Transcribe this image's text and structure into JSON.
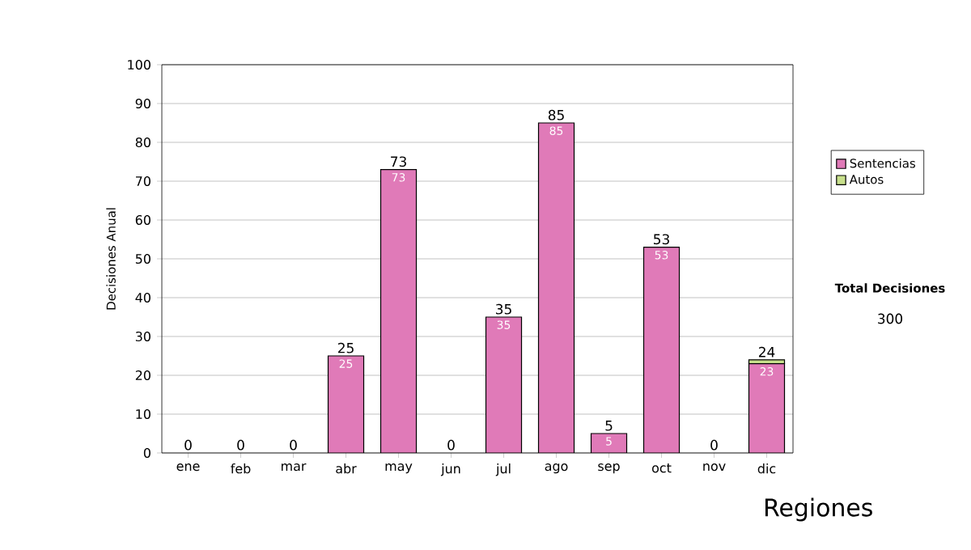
{
  "chart_data": {
    "type": "bar",
    "stacked": true,
    "ylabel": "Decisiones Anual",
    "categories": [
      "ene",
      "feb",
      "mar",
      "abr",
      "may",
      "jun",
      "jul",
      "ago",
      "sep",
      "oct",
      "nov",
      "dic"
    ],
    "series": [
      {
        "name": "Sentencias",
        "color": "#e07ab8",
        "values": [
          0,
          0,
          0,
          25,
          73,
          0,
          35,
          85,
          5,
          53,
          0,
          23
        ],
        "value_labels": [
          null,
          null,
          null,
          "25",
          "73",
          null,
          "35",
          "85",
          "5",
          "53",
          null,
          "23"
        ]
      },
      {
        "name": "Autos",
        "color": "#c8e08c",
        "values": [
          0,
          0,
          0,
          0,
          0,
          0,
          0,
          0,
          0,
          0,
          0,
          1
        ]
      }
    ],
    "totals": [
      "0",
      "0",
      "0",
      "25",
      "73",
      "0",
      "35",
      "85",
      "5",
      "53",
      "0",
      "24"
    ],
    "ylim": [
      0,
      100
    ],
    "yticks": [
      0,
      10,
      20,
      30,
      40,
      50,
      60,
      70,
      80,
      90,
      100
    ],
    "grid": "y",
    "legend": "right",
    "annotations": [
      "Total Decisiones",
      "300",
      "Regiones"
    ]
  }
}
